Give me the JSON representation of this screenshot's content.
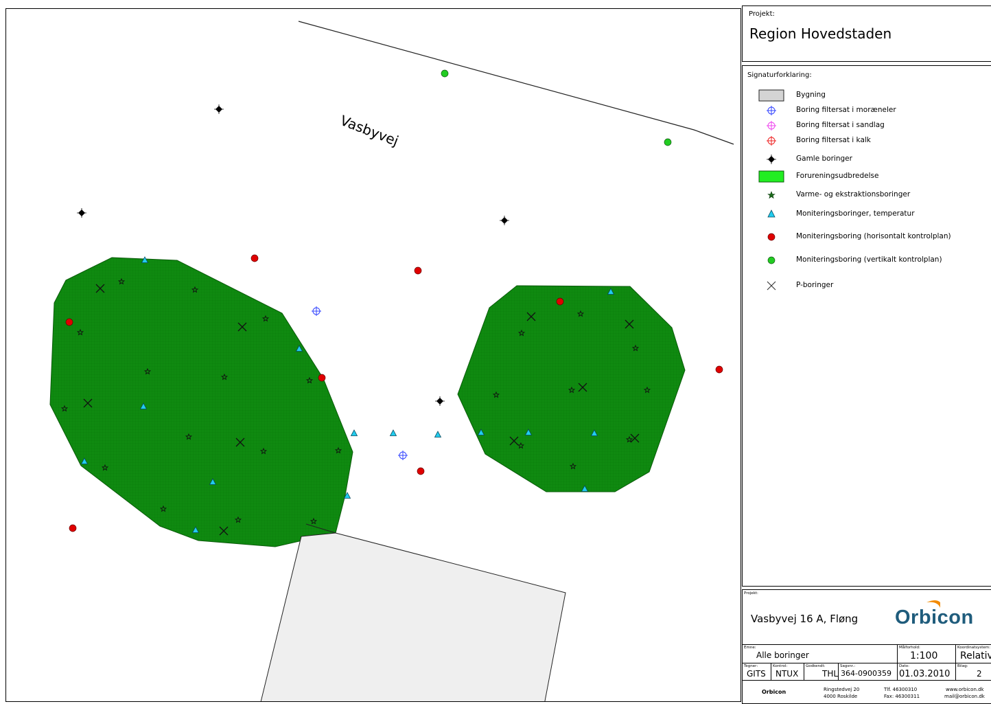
{
  "project": {
    "label": "Projekt:",
    "name": "Region Hovedstaden"
  },
  "map": {
    "road_label": "Vasbyvej",
    "colors": {
      "contamination": "#0f8a10",
      "building": "#efefef",
      "red_point": "#e00000",
      "green_point": "#22cc22",
      "temp_triangle": "#22ccee",
      "moraine_blue": "#3344ff"
    }
  },
  "legend": {
    "title": "Signaturforklaring:",
    "items": [
      {
        "icon": "building-swatch",
        "label": "Bygning"
      },
      {
        "icon": "blue-crosshair-icon",
        "label": "Boring filtersat i moræneler"
      },
      {
        "icon": "pink-crosshair-icon",
        "label": "Boring filtersat i sandlag"
      },
      {
        "icon": "red-crosshair-icon",
        "label": "Boring filtersat i kalk"
      },
      {
        "icon": "black-diamond-icon",
        "label": "Gamle boringer"
      },
      {
        "icon": "green-area-swatch",
        "label": "Forureningsudbredelse"
      },
      {
        "icon": "star-icon",
        "label": "Varme- og ekstraktionsboringer"
      },
      {
        "icon": "cyan-triangle-icon",
        "label": "Moniteringsboringer, temperatur"
      },
      {
        "icon": "red-dot-icon",
        "label": "Moniteringsboring (horisontalt kontrolplan)"
      },
      {
        "icon": "green-dot-icon",
        "label": "Moniteringsboring (vertikalt kontrolplan)"
      },
      {
        "icon": "x-icon",
        "label": "P-boringer"
      }
    ]
  },
  "title_block": {
    "project_label": "Projekt:",
    "project_name": "Vasbyvej 16 A, Fløng",
    "logo": "Orbicon",
    "drawing_label": "Emne:",
    "drawing_name": "Alle boringer",
    "scale_label": "Målforhold:",
    "scale": "1:100",
    "coord_label": "Koordinatsystem:",
    "coord": "Relativ",
    "drawn_label": "Tegner:",
    "drawn": "GITS",
    "checked_label": "Kontrol:",
    "checked": "NTUX",
    "approved_label": "Godkendt:",
    "approved": "THL",
    "sag_label": "Sagsnr.:",
    "sag": "364-0900359",
    "date_label": "Dato:",
    "date": "01.03.2010",
    "sheet_label": "Bilag:",
    "sheet": "2",
    "company": "Orbicon",
    "address1": "Ringstedvej 20",
    "address2": "4000 Roskilde",
    "tel": "Tlf.  46300310",
    "fax": "Fax: 46300311",
    "web": "www.orbicon.dk",
    "mail": "mail@orbicon.dk"
  }
}
